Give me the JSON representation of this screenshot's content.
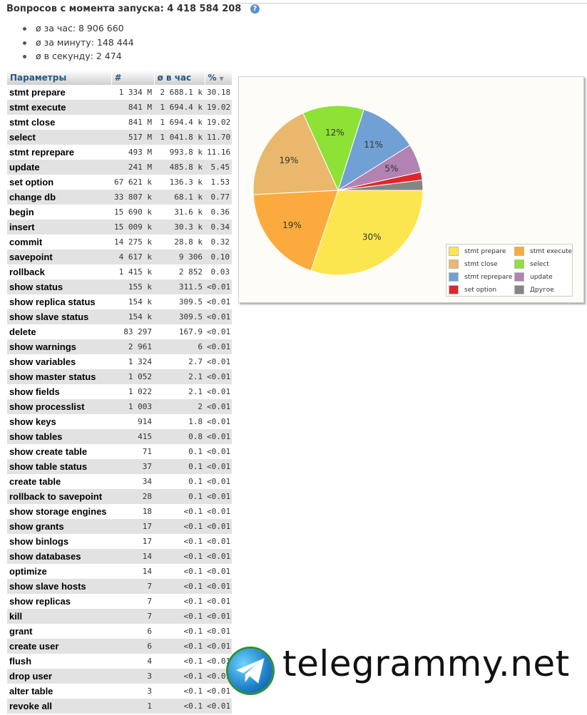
{
  "header": {
    "title": "Вопросов с момента запуска: 4 418 584 208",
    "help_icon": "info-icon"
  },
  "rates": [
    "ø за час: 8 906 660",
    "ø за минуту: 148 444",
    "ø в секунду: 2 474"
  ],
  "table": {
    "columns": [
      "Параметры",
      "#",
      "ø в час",
      "%"
    ],
    "sorted_column": "%",
    "rows": [
      {
        "name": "stmt prepare",
        "count": "1 334 M",
        "per_hour": "2 688.1 k",
        "pct": "30.18"
      },
      {
        "name": "stmt execute",
        "count": "841 M",
        "per_hour": "1 694.4 k",
        "pct": "19.02"
      },
      {
        "name": "stmt close",
        "count": "841 M",
        "per_hour": "1 694.4 k",
        "pct": "19.02"
      },
      {
        "name": "select",
        "count": "517 M",
        "per_hour": "1 041.8 k",
        "pct": "11.70"
      },
      {
        "name": "stmt reprepare",
        "count": "493 M",
        "per_hour": "993.8 k",
        "pct": "11.16"
      },
      {
        "name": "update",
        "count": "241 M",
        "per_hour": "485.8 k",
        "pct": "5.45"
      },
      {
        "name": "set option",
        "count": "67 621 k",
        "per_hour": "136.3 k",
        "pct": "1.53"
      },
      {
        "name": "change db",
        "count": "33 807 k",
        "per_hour": "68.1 k",
        "pct": "0.77"
      },
      {
        "name": "begin",
        "count": "15 690 k",
        "per_hour": "31.6 k",
        "pct": "0.36"
      },
      {
        "name": "insert",
        "count": "15 009 k",
        "per_hour": "30.3 k",
        "pct": "0.34"
      },
      {
        "name": "commit",
        "count": "14 275 k",
        "per_hour": "28.8 k",
        "pct": "0.32"
      },
      {
        "name": "savepoint",
        "count": "4 617 k",
        "per_hour": "9 306",
        "pct": "0.10"
      },
      {
        "name": "rollback",
        "count": "1 415 k",
        "per_hour": "2 852",
        "pct": "0.03"
      },
      {
        "name": "show status",
        "count": "155 k",
        "per_hour": "311.5",
        "pct": "<0.01"
      },
      {
        "name": "show replica status",
        "count": "154 k",
        "per_hour": "309.5",
        "pct": "<0.01"
      },
      {
        "name": "show slave status",
        "count": "154 k",
        "per_hour": "309.5",
        "pct": "<0.01"
      },
      {
        "name": "delete",
        "count": "83 297",
        "per_hour": "167.9",
        "pct": "<0.01"
      },
      {
        "name": "show warnings",
        "count": "2 961",
        "per_hour": "6",
        "pct": "<0.01"
      },
      {
        "name": "show variables",
        "count": "1 324",
        "per_hour": "2.7",
        "pct": "<0.01"
      },
      {
        "name": "show master status",
        "count": "1 052",
        "per_hour": "2.1",
        "pct": "<0.01"
      },
      {
        "name": "show fields",
        "count": "1 022",
        "per_hour": "2.1",
        "pct": "<0.01"
      },
      {
        "name": "show processlist",
        "count": "1 003",
        "per_hour": "2",
        "pct": "<0.01"
      },
      {
        "name": "show keys",
        "count": "914",
        "per_hour": "1.8",
        "pct": "<0.01"
      },
      {
        "name": "show tables",
        "count": "415",
        "per_hour": "0.8",
        "pct": "<0.01"
      },
      {
        "name": "show create table",
        "count": "71",
        "per_hour": "0.1",
        "pct": "<0.01"
      },
      {
        "name": "show table status",
        "count": "37",
        "per_hour": "0.1",
        "pct": "<0.01"
      },
      {
        "name": "create table",
        "count": "34",
        "per_hour": "0.1",
        "pct": "<0.01"
      },
      {
        "name": "rollback to savepoint",
        "count": "28",
        "per_hour": "0.1",
        "pct": "<0.01"
      },
      {
        "name": "show storage engines",
        "count": "18",
        "per_hour": "<0.1",
        "pct": "<0.01"
      },
      {
        "name": "show grants",
        "count": "17",
        "per_hour": "<0.1",
        "pct": "<0.01"
      },
      {
        "name": "show binlogs",
        "count": "17",
        "per_hour": "<0.1",
        "pct": "<0.01"
      },
      {
        "name": "show databases",
        "count": "14",
        "per_hour": "<0.1",
        "pct": "<0.01"
      },
      {
        "name": "optimize",
        "count": "14",
        "per_hour": "<0.1",
        "pct": "<0.01"
      },
      {
        "name": "show slave hosts",
        "count": "7",
        "per_hour": "<0.1",
        "pct": "<0.01"
      },
      {
        "name": "show replicas",
        "count": "7",
        "per_hour": "<0.1",
        "pct": "<0.01"
      },
      {
        "name": "kill",
        "count": "7",
        "per_hour": "<0.1",
        "pct": "<0.01"
      },
      {
        "name": "grant",
        "count": "6",
        "per_hour": "<0.1",
        "pct": "<0.01"
      },
      {
        "name": "create user",
        "count": "6",
        "per_hour": "<0.1",
        "pct": "<0.01"
      },
      {
        "name": "flush",
        "count": "4",
        "per_hour": "<0.1",
        "pct": "<0.01"
      },
      {
        "name": "drop user",
        "count": "3",
        "per_hour": "<0.1",
        "pct": "<0.01"
      },
      {
        "name": "alter table",
        "count": "3",
        "per_hour": "<0.1",
        "pct": "<0.01"
      },
      {
        "name": "revoke all",
        "count": "1",
        "per_hour": "<0.1",
        "pct": "<0.01"
      }
    ]
  },
  "chart_data": {
    "type": "pie",
    "title": "",
    "legend_position": "bottom-right",
    "slices": [
      {
        "name": "stmt prepare",
        "value": 30.18,
        "label": "30%",
        "color": "#fce650"
      },
      {
        "name": "stmt execute",
        "value": 19.02,
        "label": "19%",
        "color": "#fbab3d"
      },
      {
        "name": "stmt close",
        "value": 19.02,
        "label": "19%",
        "color": "#e9b86c"
      },
      {
        "name": "select",
        "value": 11.7,
        "label": "12%",
        "color": "#8ee236"
      },
      {
        "name": "stmt reprepare",
        "value": 11.16,
        "label": "11%",
        "color": "#70a0d4"
      },
      {
        "name": "update",
        "value": 5.45,
        "label": "5%",
        "color": "#b182b2"
      },
      {
        "name": "set option",
        "value": 1.53,
        "label": "",
        "color": "#e0262b"
      },
      {
        "name": "Другое",
        "value": 1.94,
        "label": "",
        "color": "#858585"
      }
    ]
  },
  "watermark": {
    "text": "telegrammy.net",
    "icon": "telegram-plane-icon"
  }
}
